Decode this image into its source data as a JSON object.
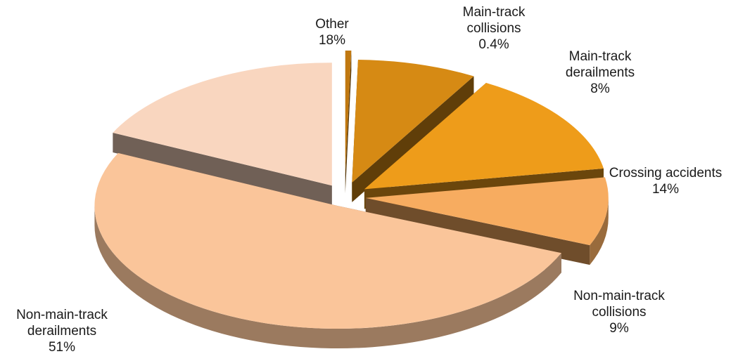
{
  "chart_data": {
    "type": "pie",
    "title": "",
    "slices": [
      {
        "label_lines": [
          "Main-track",
          "collisions"
        ],
        "value_text": "0.4%",
        "value": 0.4,
        "color": "#C07810"
      },
      {
        "label_lines": [
          "Main-track",
          "derailments"
        ],
        "value_text": "8%",
        "value": 8,
        "color": "#D68A14"
      },
      {
        "label_lines": [
          "Crossing accidents"
        ],
        "value_text": "14%",
        "value": 14,
        "color": "#EE9C1A"
      },
      {
        "label_lines": [
          "Non-main-track",
          "collisions"
        ],
        "value_text": "9%",
        "value": 9,
        "color": "#F7AC60"
      },
      {
        "label_lines": [
          "Non-main-track",
          "derailments"
        ],
        "value_text": "51%",
        "value": 51,
        "color": "#FAC59A"
      },
      {
        "label_lines": [
          "Other"
        ],
        "value_text": "18%",
        "value": 18,
        "color": "#F9D6BF"
      }
    ],
    "style": "3d-exploded"
  }
}
